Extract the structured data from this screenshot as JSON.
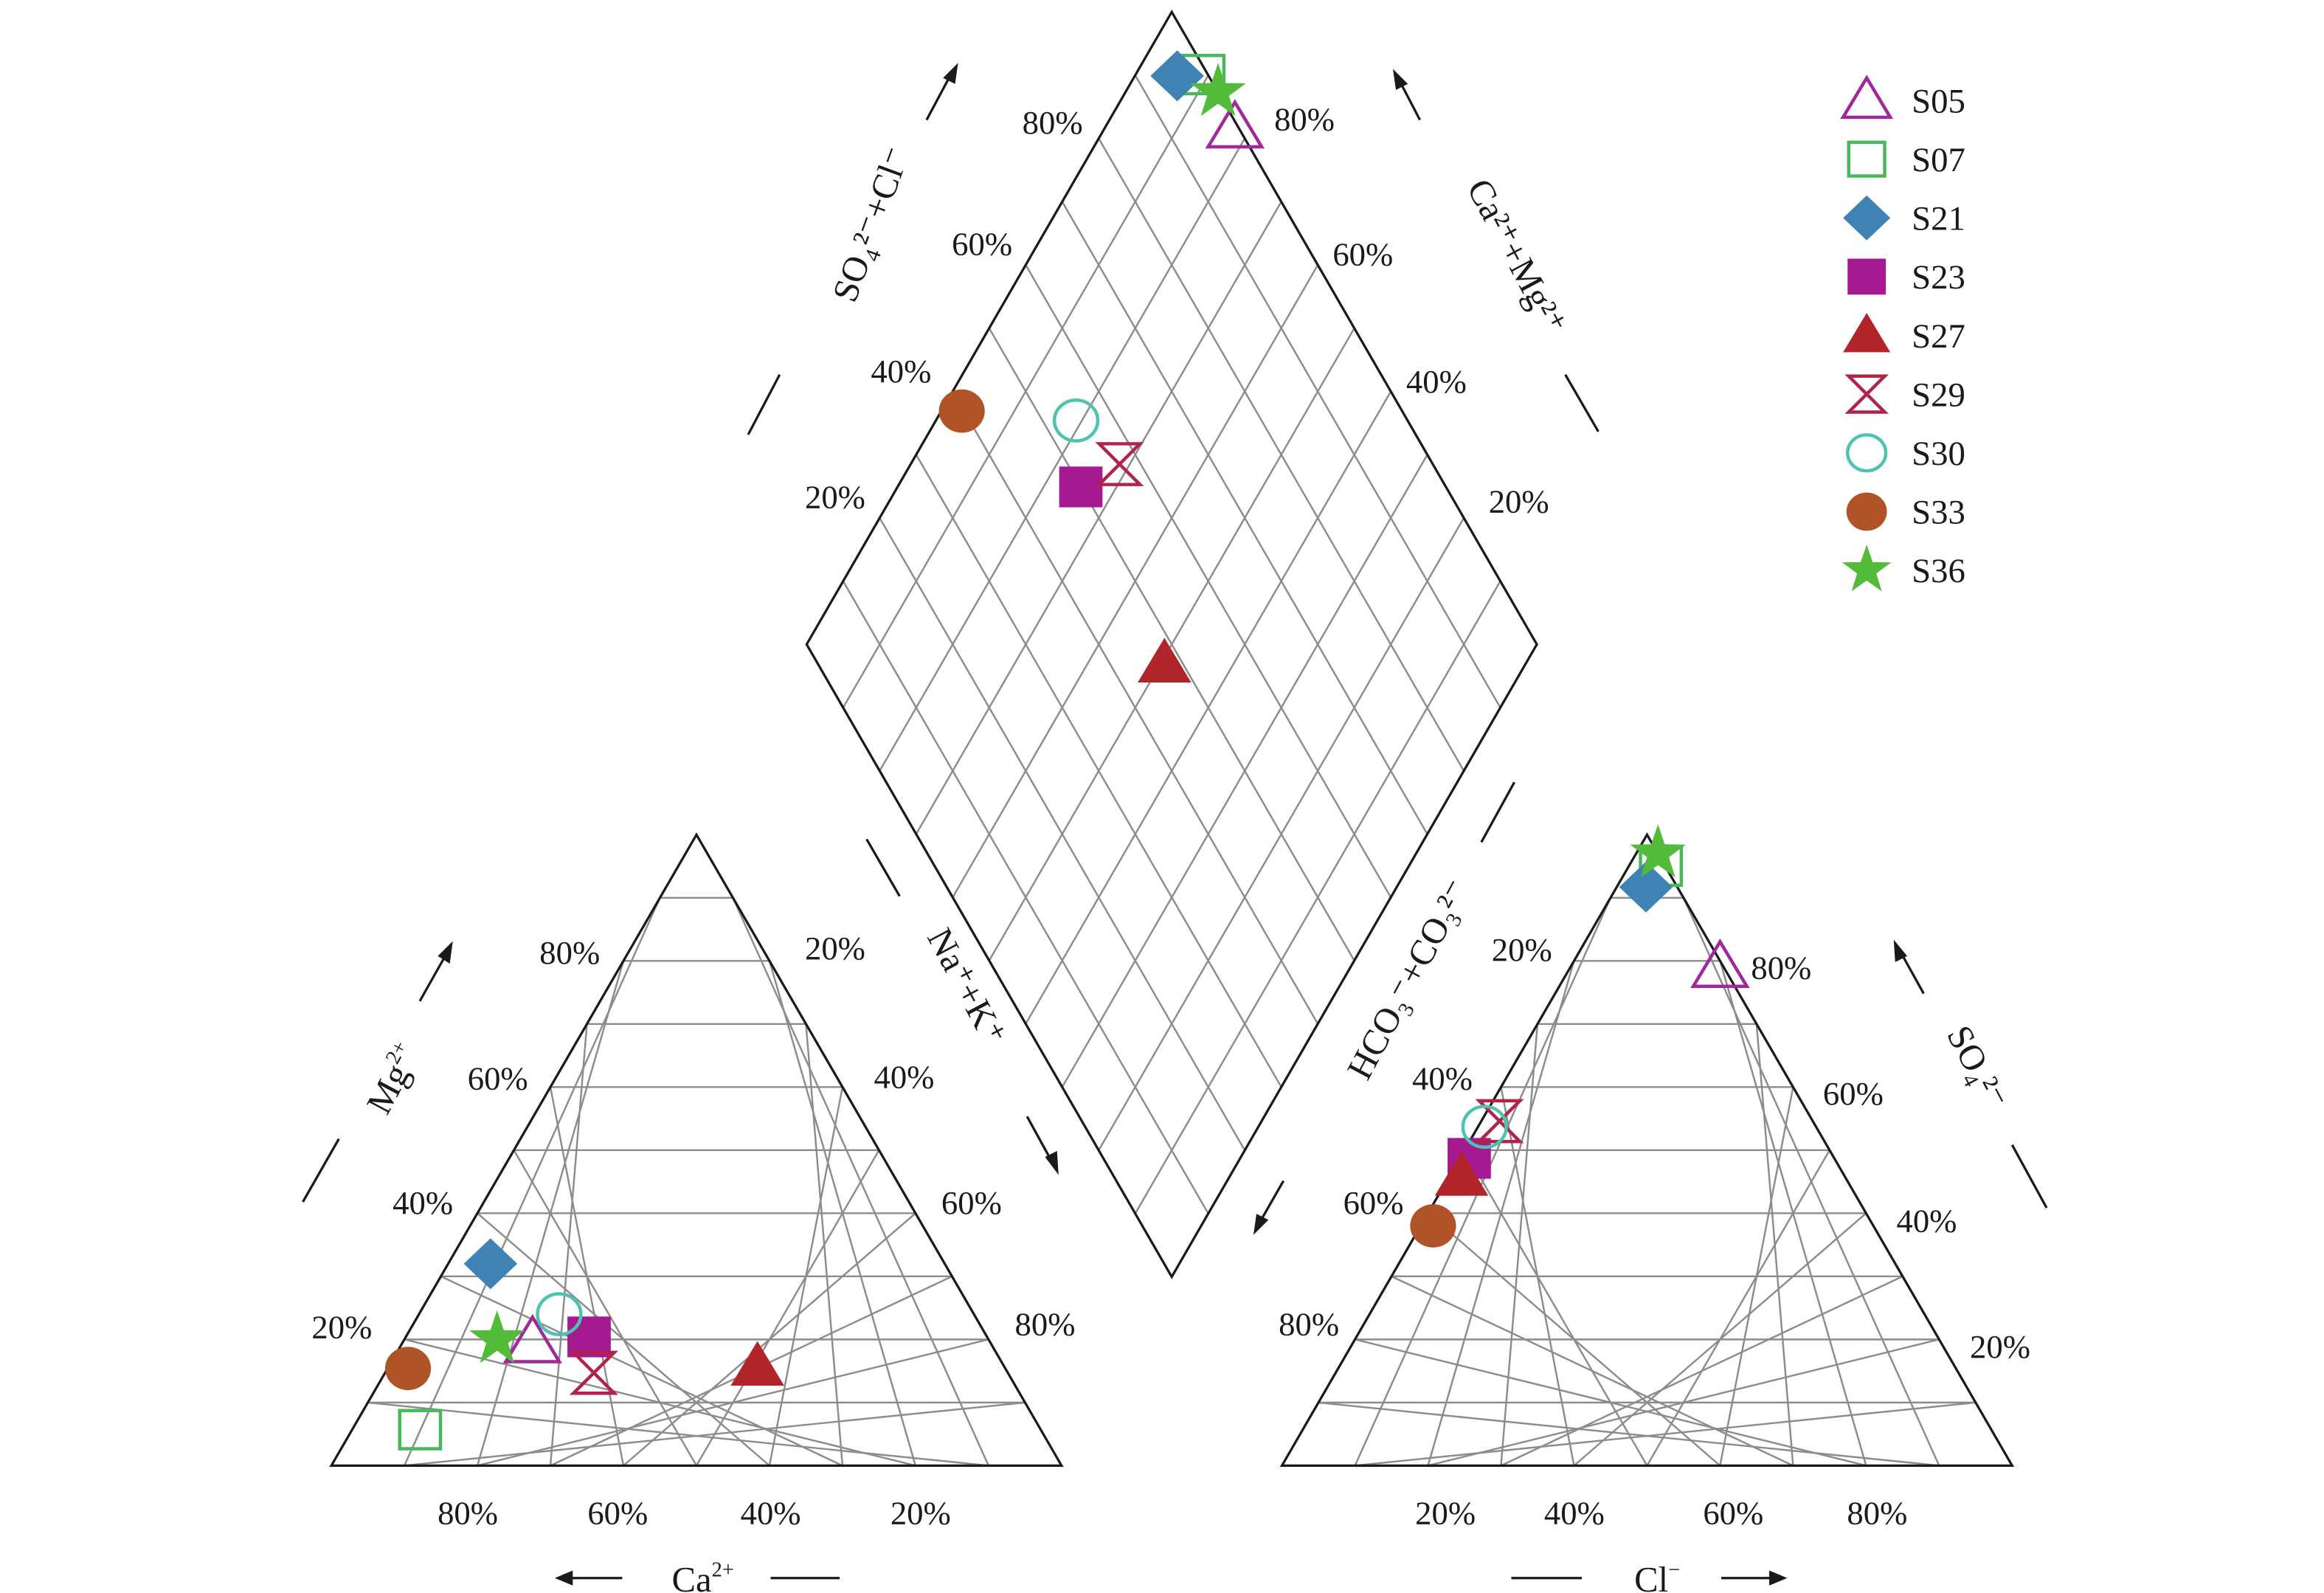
{
  "chart_data": {
    "type": "scatter",
    "subtype": "piper-diagram",
    "title": "",
    "grid": true,
    "grid_step_percent": 10,
    "legend_position": "top-right",
    "cation_triangle": {
      "axes": {
        "ca": {
          "label": "Ca",
          "charge": "2+",
          "ticks": [
            "80%",
            "60%",
            "40%",
            "20%"
          ]
        },
        "mg": {
          "label": "Mg",
          "charge": "2+",
          "ticks": [
            "20%",
            "40%",
            "60%",
            "80%"
          ]
        },
        "nak": {
          "label": "Na⁺+K⁺",
          "ticks": [
            "20%",
            "40%",
            "60%",
            "80%"
          ]
        }
      }
    },
    "anion_triangle": {
      "axes": {
        "cl": {
          "label": "Cl",
          "charge": "−",
          "ticks": [
            "20%",
            "40%",
            "60%",
            "80%"
          ]
        },
        "so4": {
          "label": "SO₄²⁻",
          "ticks": [
            "20%",
            "40%",
            "60%",
            "80%"
          ]
        },
        "hco3": {
          "label": "HCO₃⁻+CO₃²⁻",
          "ticks": [
            "20%",
            "40%",
            "60%",
            "80%"
          ]
        }
      }
    },
    "diamond": {
      "axes": {
        "so4cl": {
          "label": "SO₄²⁻+Cl⁻",
          "ticks": [
            "20%",
            "40%",
            "60%",
            "80%"
          ]
        },
        "camg": {
          "label": "Ca²⁺+Mg²⁺",
          "ticks": [
            "20%",
            "40%",
            "60%",
            "80%"
          ]
        }
      }
    },
    "series": [
      {
        "name": "S05",
        "marker": "triangle-open",
        "color": "#a0289a",
        "cations": {
          "ca": 62.7,
          "mg": 19.5,
          "nak": 17.8
        },
        "anions": {
          "hco3": 0.5,
          "so4": 79.0,
          "cl": 20.5
        }
      },
      {
        "name": "S07",
        "marker": "square-open",
        "color": "#4ab85a",
        "cations": {
          "ca": 85.0,
          "mg": 5.7,
          "nak": 9.3
        },
        "anions": {
          "hco3": 0.6,
          "so4": 95.0,
          "cl": 4.4
        }
      },
      {
        "name": "S21",
        "marker": "diamond-filled",
        "color": "#3f82b4",
        "cations": {
          "ca": 62.2,
          "mg": 32.0,
          "nak": 5.8
        },
        "anions": {
          "hco3": 4.3,
          "so4": 91.7,
          "cl": 4.0
        }
      },
      {
        "name": "S23",
        "marker": "square-filled",
        "color": "#a61a91",
        "cations": {
          "ca": 54.5,
          "mg": 20.4,
          "nak": 25.1
        },
        "anions": {
          "hco3": 50.0,
          "so4": 48.7,
          "cl": 1.3
        }
      },
      {
        "name": "S27",
        "marker": "triangle-filled",
        "color": "#b0242a",
        "cations": {
          "ca": 33.8,
          "mg": 15.7,
          "nak": 50.5
        },
        "anions": {
          "hco3": 52.5,
          "so4": 45.8,
          "cl": 1.7
        }
      },
      {
        "name": "S29",
        "marker": "hourglass-open",
        "color": "#b0244a",
        "cations": {
          "ca": 56.7,
          "mg": 14.7,
          "nak": 28.6
        },
        "anions": {
          "hco3": 42.9,
          "so4": 54.6,
          "cl": 2.5
        }
      },
      {
        "name": "S30",
        "marker": "circle-open",
        "color": "#4cc4b0",
        "cations": {
          "ca": 56.8,
          "mg": 24.0,
          "nak": 19.2
        },
        "anions": {
          "hco3": 45.4,
          "so4": 53.7,
          "cl": 0.9
        }
      },
      {
        "name": "S33",
        "marker": "circle-filled",
        "color": "#b05428",
        "cations": {
          "ca": 81.8,
          "mg": 15.4,
          "nak": 2.8
        },
        "anions": {
          "hco3": 60.3,
          "so4": 38.0,
          "cl": 1.7
        }
      },
      {
        "name": "S36",
        "marker": "star-filled",
        "color": "#52bc3a",
        "cations": {
          "ca": 67.3,
          "mg": 20.0,
          "nak": 12.7
        },
        "anions": {
          "hco3": 0.0,
          "so4": 97.0,
          "cl": 3.0
        }
      }
    ]
  }
}
